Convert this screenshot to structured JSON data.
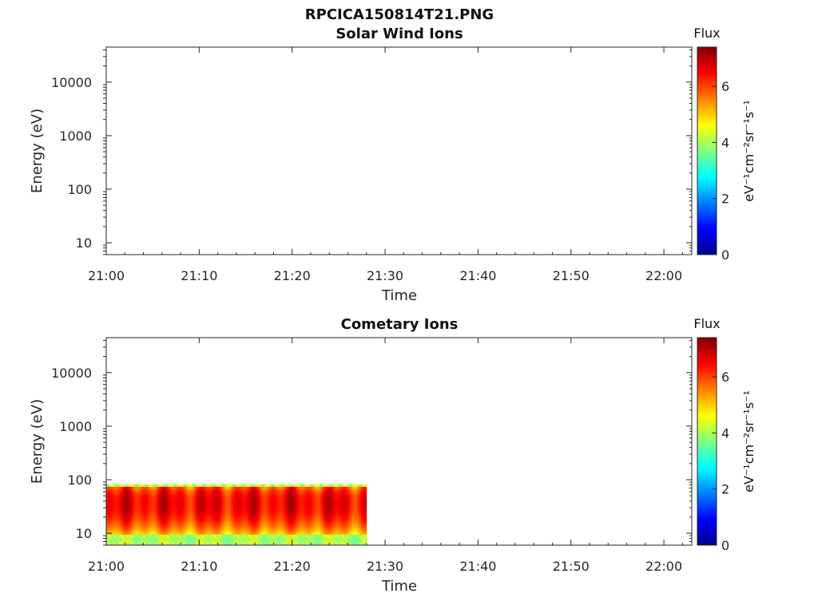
{
  "figure": {
    "title": "RPCICA150814T21.PNG"
  },
  "colors": {
    "jet": [
      "#00008f",
      "#0000ff",
      "#0080ff",
      "#00ffff",
      "#80ff80",
      "#ffff00",
      "#ff8000",
      "#ff0000",
      "#800000"
    ],
    "axis": "#262626"
  },
  "chart_data": [
    {
      "type": "heatmap",
      "title": "Solar Wind Ions",
      "xlabel": "Time",
      "ylabel": "Energy (eV)",
      "x_ticks": [
        "21:00",
        "21:10",
        "21:20",
        "21:30",
        "21:40",
        "21:50",
        "22:00"
      ],
      "xlim_minutes": [
        0,
        63
      ],
      "y_scale": "log",
      "ylim": [
        6,
        45000
      ],
      "y_ticks": [
        10,
        100,
        1000,
        10000
      ],
      "y_tick_labels": [
        "10",
        "100",
        "1000",
        "10000"
      ],
      "colorbar": {
        "title": "Flux",
        "unit": "eV⁻¹cm⁻²sr⁻¹s⁻¹",
        "range": [
          0,
          7.4
        ],
        "ticks": [
          0,
          2,
          4,
          6
        ],
        "tick_labels": [
          "0",
          "2",
          "4",
          "6"
        ],
        "colormap": "jet"
      },
      "data": []
    },
    {
      "type": "heatmap",
      "title": "Cometary Ions",
      "xlabel": "Time",
      "ylabel": "Energy (eV)",
      "x_ticks": [
        "21:00",
        "21:10",
        "21:20",
        "21:30",
        "21:40",
        "21:50",
        "22:00"
      ],
      "xlim_minutes": [
        0,
        63
      ],
      "y_scale": "log",
      "ylim": [
        6,
        45000
      ],
      "y_ticks": [
        10,
        100,
        1000,
        10000
      ],
      "y_tick_labels": [
        "10",
        "100",
        "1000",
        "10000"
      ],
      "colorbar": {
        "title": "Flux",
        "unit": "eV⁻¹cm⁻²sr⁻¹s⁻¹",
        "range": [
          0,
          7.4
        ],
        "ticks": [
          0,
          2,
          4,
          6
        ],
        "tick_labels": [
          "0",
          "2",
          "4",
          "6"
        ],
        "colormap": "jet"
      },
      "data": {
        "time_range_minutes": [
          0,
          28
        ],
        "energy_range_eV": [
          6,
          82
        ],
        "peak_flux": 7.2,
        "peak_energy_eV": 35,
        "low_energy_flux": 3.5
      }
    }
  ]
}
